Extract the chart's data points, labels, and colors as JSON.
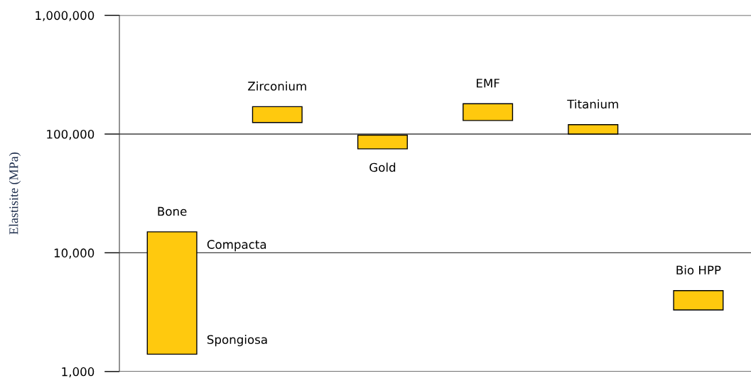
{
  "chart_data": {
    "type": "bar",
    "ylabel": "Elastisite (MPa)",
    "categories": [
      "Bone",
      "Zirconium",
      "Gold",
      "EMF",
      "Titanium",
      "Bio HPP"
    ],
    "base": [
      1400,
      125000,
      75000,
      130000,
      100000,
      3300
    ],
    "values": [
      13600,
      45000,
      23000,
      50000,
      20000,
      1500
    ],
    "color": "#ffc90e",
    "log": true,
    "ylim": [
      1000,
      1000000
    ],
    "yticks": [
      {
        "value": 1000,
        "label": "1,000"
      },
      {
        "value": 10000,
        "label": "10,000"
      },
      {
        "value": 100000,
        "label": "100,000"
      },
      {
        "value": 1000000,
        "label": "1,000,000"
      }
    ],
    "grid": "y",
    "tick_labels": "y",
    "annotations": [
      "Compacta",
      "Spongiosa"
    ]
  }
}
